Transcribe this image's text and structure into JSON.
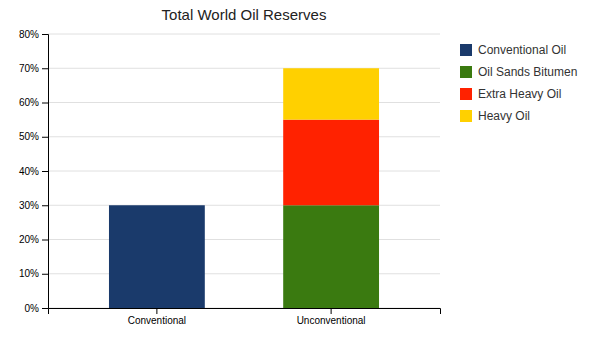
{
  "chart_data": {
    "type": "bar",
    "stacked": true,
    "title": "Total World Oil Reserves",
    "categories": [
      "Conventional",
      "Unconventional"
    ],
    "series": [
      {
        "name": "Conventional Oil",
        "color": "#1a3a6b",
        "values": [
          30,
          0
        ]
      },
      {
        "name": "Oil Sands Bitumen",
        "color": "#3a7a10",
        "values": [
          0,
          30
        ]
      },
      {
        "name": "Extra Heavy Oil",
        "color": "#ff2200",
        "values": [
          0,
          25
        ]
      },
      {
        "name": "Heavy Oil",
        "color": "#ffd000",
        "values": [
          0,
          15
        ]
      }
    ],
    "ylim": [
      0,
      80
    ],
    "yticks": [
      {
        "value": 0,
        "label": "0%"
      },
      {
        "value": 10,
        "label": "10%"
      },
      {
        "value": 20,
        "label": "20%"
      },
      {
        "value": 30,
        "label": "30%"
      },
      {
        "value": 40,
        "label": "40%"
      },
      {
        "value": 50,
        "label": "50%"
      },
      {
        "value": 60,
        "label": "60%"
      },
      {
        "value": 70,
        "label": "70%"
      },
      {
        "value": 80,
        "label": "80%"
      }
    ],
    "grid": true,
    "legend": "right"
  }
}
